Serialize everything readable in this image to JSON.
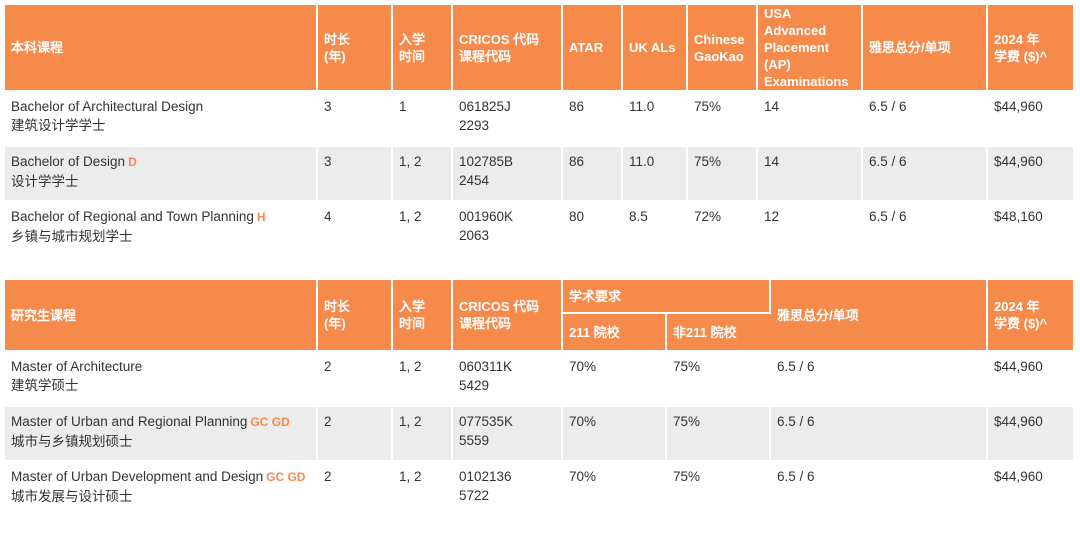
{
  "colors": {
    "header_bg": "#f58a4b",
    "row_alt": "#ececec",
    "tag": "#f58a4b"
  },
  "undergrad": {
    "headers": {
      "course": "本科课程",
      "duration": [
        "时长",
        "(年)"
      ],
      "intake": [
        "入学",
        "时间"
      ],
      "cricos": [
        "CRICOS 代码",
        "课程代码"
      ],
      "atar": "ATAR",
      "ukals": "UK ALs",
      "gaokao": [
        "Chinese",
        "GaoKao"
      ],
      "ap": [
        "USA Advanced",
        "Placement (AP)",
        "Examinations"
      ],
      "ielts": "雅思总分/单项",
      "fee": [
        "2024 年",
        "学费 ($)^"
      ]
    },
    "rows": [
      {
        "name_en": "Bachelor of Architectural Design",
        "tag": "",
        "name_zh": "建筑设计学学士",
        "duration": "3",
        "intake": "1",
        "cricos": [
          "061825J",
          "2293"
        ],
        "atar": "86",
        "ukals": "11.0",
        "gaokao": "75%",
        "ap": "14",
        "ielts": "6.5 / 6",
        "fee": "$44,960"
      },
      {
        "name_en": "Bachelor of Design",
        "tag": "D",
        "name_zh": "设计学学士",
        "duration": "3",
        "intake": "1, 2",
        "cricos": [
          "102785B",
          "2454"
        ],
        "atar": "86",
        "ukals": "11.0",
        "gaokao": "75%",
        "ap": "14",
        "ielts": "6.5 / 6",
        "fee": "$44,960"
      },
      {
        "name_en": "Bachelor of Regional and Town Planning",
        "tag": "H",
        "name_zh": "乡镇与城市规划学士",
        "duration": "4",
        "intake": "1, 2",
        "cricos": [
          "001960K",
          "2063"
        ],
        "atar": "80",
        "ukals": "8.5",
        "gaokao": "72%",
        "ap": "12",
        "ielts": "6.5 / 6",
        "fee": "$48,160"
      }
    ]
  },
  "postgrad": {
    "headers": {
      "course": "研究生课程",
      "duration": [
        "时长",
        "(年)"
      ],
      "intake": [
        "入学",
        "时间"
      ],
      "cricos": [
        "CRICOS 代码",
        "课程代码"
      ],
      "academic": "学术要求",
      "u211": "211 院校",
      "non211": "非211 院校",
      "ielts": "雅思总分/单项",
      "fee": [
        "2024 年",
        "学费 ($)^"
      ]
    },
    "rows": [
      {
        "name_en": "Master of Architecture",
        "tag": "",
        "name_zh": "建筑学硕士",
        "duration": "2",
        "intake": "1, 2",
        "cricos": [
          "060311K",
          "5429"
        ],
        "u211": "70%",
        "non211": "75%",
        "ielts": "6.5 / 6",
        "fee": "$44,960"
      },
      {
        "name_en": "Master of Urban and Regional Planning",
        "tag": "GC GD",
        "name_zh": "城市与乡镇规划硕士",
        "duration": "2",
        "intake": "1, 2",
        "cricos": [
          "077535K",
          "5559"
        ],
        "u211": "70%",
        "non211": "75%",
        "ielts": "6.5 / 6",
        "fee": "$44,960"
      },
      {
        "name_en": "Master of Urban Development and Design",
        "tag": "GC GD",
        "name_zh": "城市发展与设计硕士",
        "duration": "2",
        "intake": "1, 2",
        "cricos": [
          "0102136",
          "5722"
        ],
        "u211": "70%",
        "non211": "75%",
        "ielts": "6.5 / 6",
        "fee": "$44,960"
      }
    ]
  }
}
